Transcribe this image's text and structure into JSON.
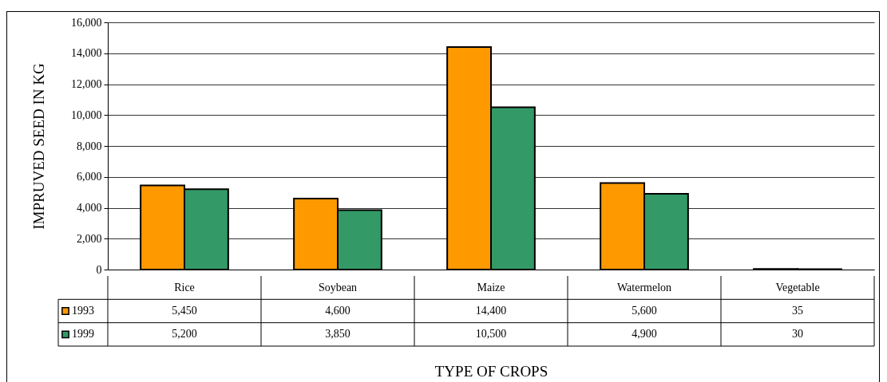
{
  "chart_data": {
    "type": "bar",
    "ylabel": "IMPRUVED SEED IN KG",
    "xlabel": "TYPE OF CROPS",
    "categories": [
      "Rice",
      "Soybean",
      "Maize",
      "Watermelon",
      "Vegetable"
    ],
    "series": [
      {
        "name": "1993",
        "color": "#ff9900",
        "values": [
          5450,
          4600,
          14400,
          5600,
          35
        ],
        "value_labels": [
          "5,450",
          "4,600",
          "14,400",
          "5,600",
          "35"
        ]
      },
      {
        "name": "1999",
        "color": "#339966",
        "values": [
          5200,
          3850,
          10500,
          4900,
          30
        ],
        "value_labels": [
          "5,200",
          "3,850",
          "10,500",
          "4,900",
          "30"
        ]
      }
    ],
    "ylim": [
      0,
      16000
    ],
    "yticks": [
      0,
      {
        "value": 2000,
        "label": "2,000"
      },
      {
        "value": 4000,
        "label": "4,000"
      },
      {
        "value": 6000,
        "label": "6,000"
      },
      {
        "value": 8000,
        "label": "8,000"
      },
      {
        "value": 10000,
        "label": "10,000"
      },
      {
        "value": 12000,
        "label": "12,000"
      },
      {
        "value": 14000,
        "label": "14,000"
      },
      {
        "value": 16000,
        "label": "16,000"
      }
    ],
    "grid": "y",
    "legend": "bottom left"
  }
}
